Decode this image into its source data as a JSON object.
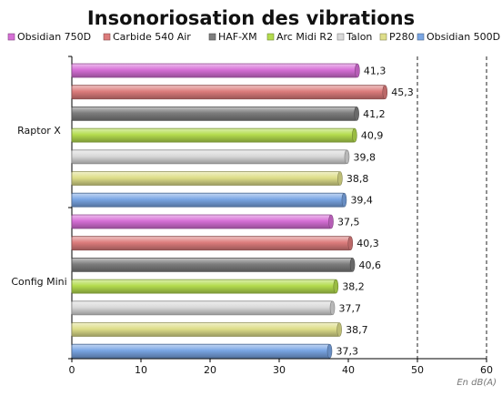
{
  "chart_data": {
    "type": "bar",
    "orientation": "horizontal",
    "title": "Insonoriosation des vibrations",
    "unit_label": "En dB(A)",
    "categories": [
      "Raptor X",
      "Config Mini"
    ],
    "xlim": [
      0,
      60
    ],
    "x_ticks": [
      0,
      10,
      20,
      30,
      40,
      50,
      60
    ],
    "grid": "vertical dashed at 50 and 60",
    "legend_position": "top",
    "series": [
      {
        "name": "Obsidian 750D",
        "color": "#d66fd6",
        "values": [
          41.3,
          37.5
        ],
        "labels": [
          "41,3",
          "37,5"
        ]
      },
      {
        "name": "Carbide 540 Air",
        "color": "#dc7c7c",
        "values": [
          45.3,
          40.3
        ],
        "labels": [
          "45,3",
          "40,3"
        ]
      },
      {
        "name": "HAF-XM",
        "color": "#7d7d7d",
        "values": [
          41.2,
          40.6
        ],
        "labels": [
          "41,2",
          "40,6"
        ]
      },
      {
        "name": "Arc Midi R2",
        "color": "#b4dc4e",
        "values": [
          40.9,
          38.2
        ],
        "labels": [
          "40,9",
          "38,2"
        ]
      },
      {
        "name": "Talon",
        "color": "#d9d9d9",
        "values": [
          39.8,
          37.7
        ],
        "labels": [
          "39,8",
          "37,7"
        ]
      },
      {
        "name": "P280",
        "color": "#dede8a",
        "values": [
          38.8,
          38.7
        ],
        "labels": [
          "38,8",
          "38,7"
        ]
      },
      {
        "name": "Obsidian 500D",
        "color": "#7aa6e4",
        "values": [
          39.4,
          37.3
        ],
        "labels": [
          "39,4",
          "37,3"
        ]
      }
    ]
  }
}
